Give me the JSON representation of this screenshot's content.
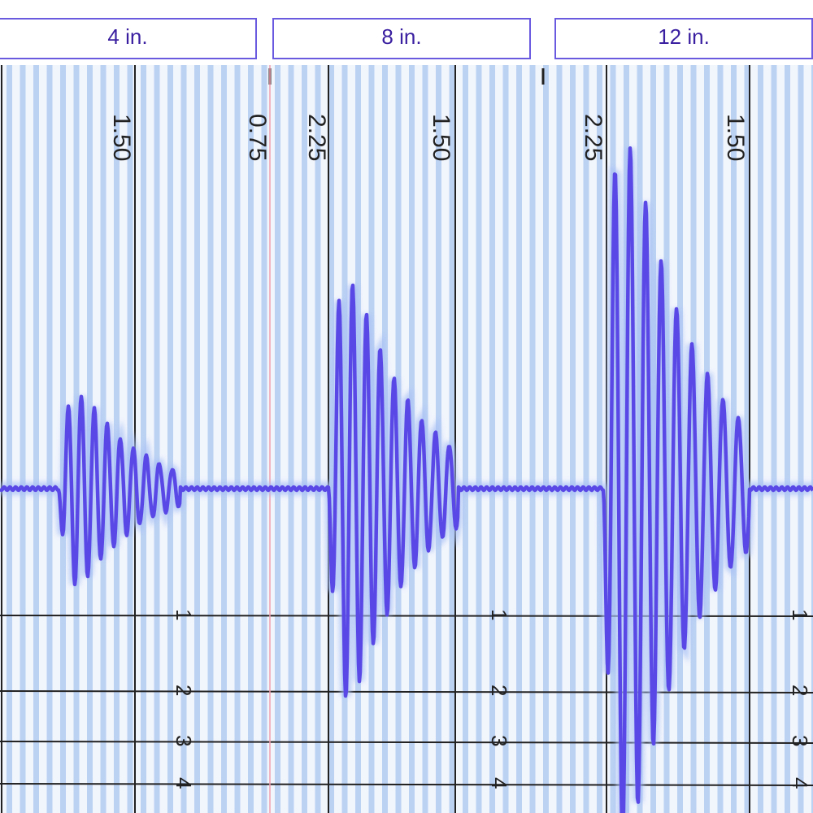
{
  "tabs": [
    "4 in.",
    "8 in.",
    "12 in."
  ],
  "scale_labels": [
    "1.50",
    "0.75",
    "2.25",
    "1.50",
    "2.25",
    "1.50"
  ],
  "row_labels": [
    "1",
    "2",
    "3",
    "4"
  ]
}
